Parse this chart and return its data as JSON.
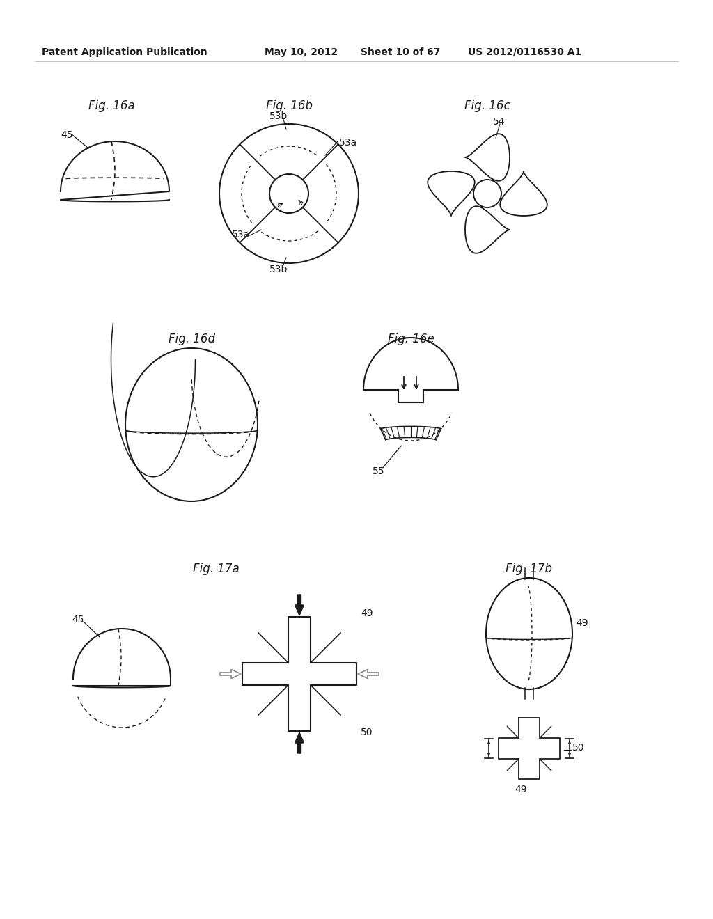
{
  "bg_color": "#ffffff",
  "line_color": "#1a1a1a",
  "dashed_color": "#555555",
  "header_text": "Patent Application Publication",
  "header_date": "May 10, 2012",
  "header_sheet": "Sheet 10 of 67",
  "header_patent": "US 2012/0116530 A1"
}
